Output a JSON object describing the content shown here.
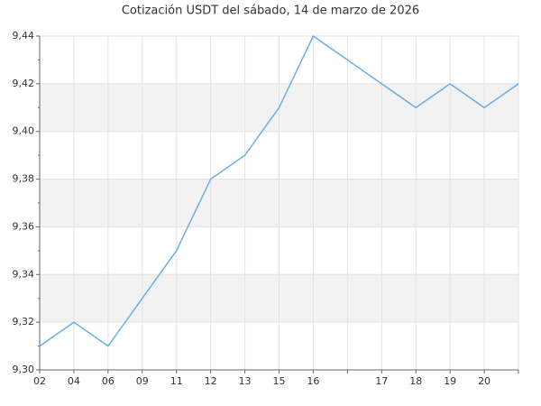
{
  "chart_data": {
    "type": "line",
    "title": "Cotización USDT del sábado, 14 de marzo de 2026",
    "categories": [
      "02",
      "04",
      "06",
      "09",
      "11",
      "12",
      "13",
      "15",
      "16",
      null,
      "17",
      "18",
      "19",
      "20",
      null
    ],
    "series": [
      {
        "color": "#6aaee8",
        "values": [
          9.31,
          9.32,
          9.31,
          9.33,
          9.35,
          9.38,
          9.39,
          9.41,
          9.44,
          9.43,
          9.42,
          9.41,
          9.42,
          9.41,
          9.42
        ]
      }
    ],
    "ylim": [
      9.3,
      9.44
    ],
    "yticks": [
      {
        "value": 9.3,
        "label": "9,30"
      },
      {
        "value": 9.32,
        "label": "9,32"
      },
      {
        "value": 9.34,
        "label": "9,34"
      },
      {
        "value": 9.36,
        "label": "9,36"
      },
      {
        "value": 9.38,
        "label": "9,38"
      },
      {
        "value": 9.4,
        "label": "9,40"
      },
      {
        "value": 9.42,
        "label": "9,42"
      },
      {
        "value": 9.44,
        "label": "9,44"
      }
    ],
    "grid": true
  }
}
